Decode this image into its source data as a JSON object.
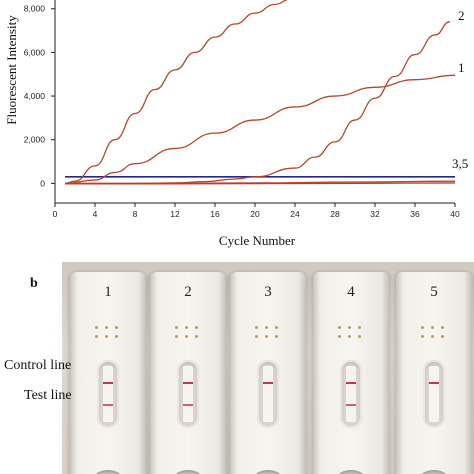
{
  "panel_a": {
    "chart_data": {
      "type": "line",
      "title": "",
      "xlabel": "Cycle Number",
      "ylabel": "Fluorescent Intensity",
      "xlim": [
        0,
        40
      ],
      "ylim": [
        -900,
        8400
      ],
      "x_ticks": [
        0,
        4,
        8,
        12,
        16,
        20,
        24,
        28,
        32,
        36,
        40
      ],
      "x_tick_labels": [
        "0",
        "4",
        "8",
        "12",
        "16",
        "20",
        "24",
        "28",
        "32",
        "36",
        "40"
      ],
      "y_ticks": [
        0,
        2000,
        4000,
        6000,
        8000
      ],
      "y_tick_labels": [
        "0",
        "2,000",
        "4,000",
        "6,000",
        "8,000"
      ],
      "grid": false,
      "legend": "none",
      "threshold": {
        "color": "#1f2a8a",
        "x": [
          1,
          40
        ],
        "y": [
          300,
          300
        ]
      },
      "series": [
        {
          "label": "",
          "color": "#b5472e",
          "x": [
            1,
            2,
            4,
            6,
            8,
            10,
            12,
            14,
            16,
            18,
            20,
            22,
            23.6
          ],
          "y": [
            0,
            100,
            800,
            2000,
            3200,
            4300,
            5200,
            6000,
            6700,
            7300,
            7800,
            8200,
            8450
          ]
        },
        {
          "label": "2",
          "color": "#b5472e",
          "x": [
            1,
            4,
            8,
            12,
            15,
            18,
            20,
            24,
            26,
            28,
            30,
            32,
            34,
            36,
            38,
            39.5
          ],
          "y": [
            0,
            0,
            0,
            20,
            80,
            200,
            300,
            700,
            1200,
            1900,
            2900,
            3900,
            4900,
            5900,
            6800,
            7400
          ]
        },
        {
          "label": "1",
          "color": "#b5472e",
          "x": [
            1,
            4,
            6,
            8,
            12,
            16,
            20,
            24,
            28,
            32,
            36,
            40
          ],
          "y": [
            0,
            150,
            500,
            900,
            1600,
            2300,
            2900,
            3500,
            4000,
            4400,
            4750,
            4950
          ]
        },
        {
          "label": "3,5",
          "color": "#b5472e",
          "x": [
            1,
            10,
            20,
            30,
            40
          ],
          "y": [
            0,
            0,
            20,
            60,
            100
          ]
        },
        {
          "label": "3,5",
          "color": "#c0392b",
          "x": [
            1,
            10,
            20,
            30,
            40
          ],
          "y": [
            -20,
            -20,
            -10,
            0,
            20
          ]
        }
      ],
      "curve_labels": [
        "2",
        "1",
        "3,5"
      ]
    }
  },
  "panel_b": {
    "label": "b",
    "control_line_label": "Control line",
    "test_line_label": "Test line",
    "strips": [
      {
        "number": "1",
        "control_line": true,
        "test_line": true
      },
      {
        "number": "2",
        "control_line": true,
        "test_line": true
      },
      {
        "number": "3",
        "control_line": true,
        "test_line": false
      },
      {
        "number": "4",
        "control_line": true,
        "test_line": true
      },
      {
        "number": "5",
        "control_line": true,
        "test_line": false
      }
    ],
    "colors": {
      "control_line": "#c0384a",
      "test_line": "#cf5f78"
    }
  }
}
